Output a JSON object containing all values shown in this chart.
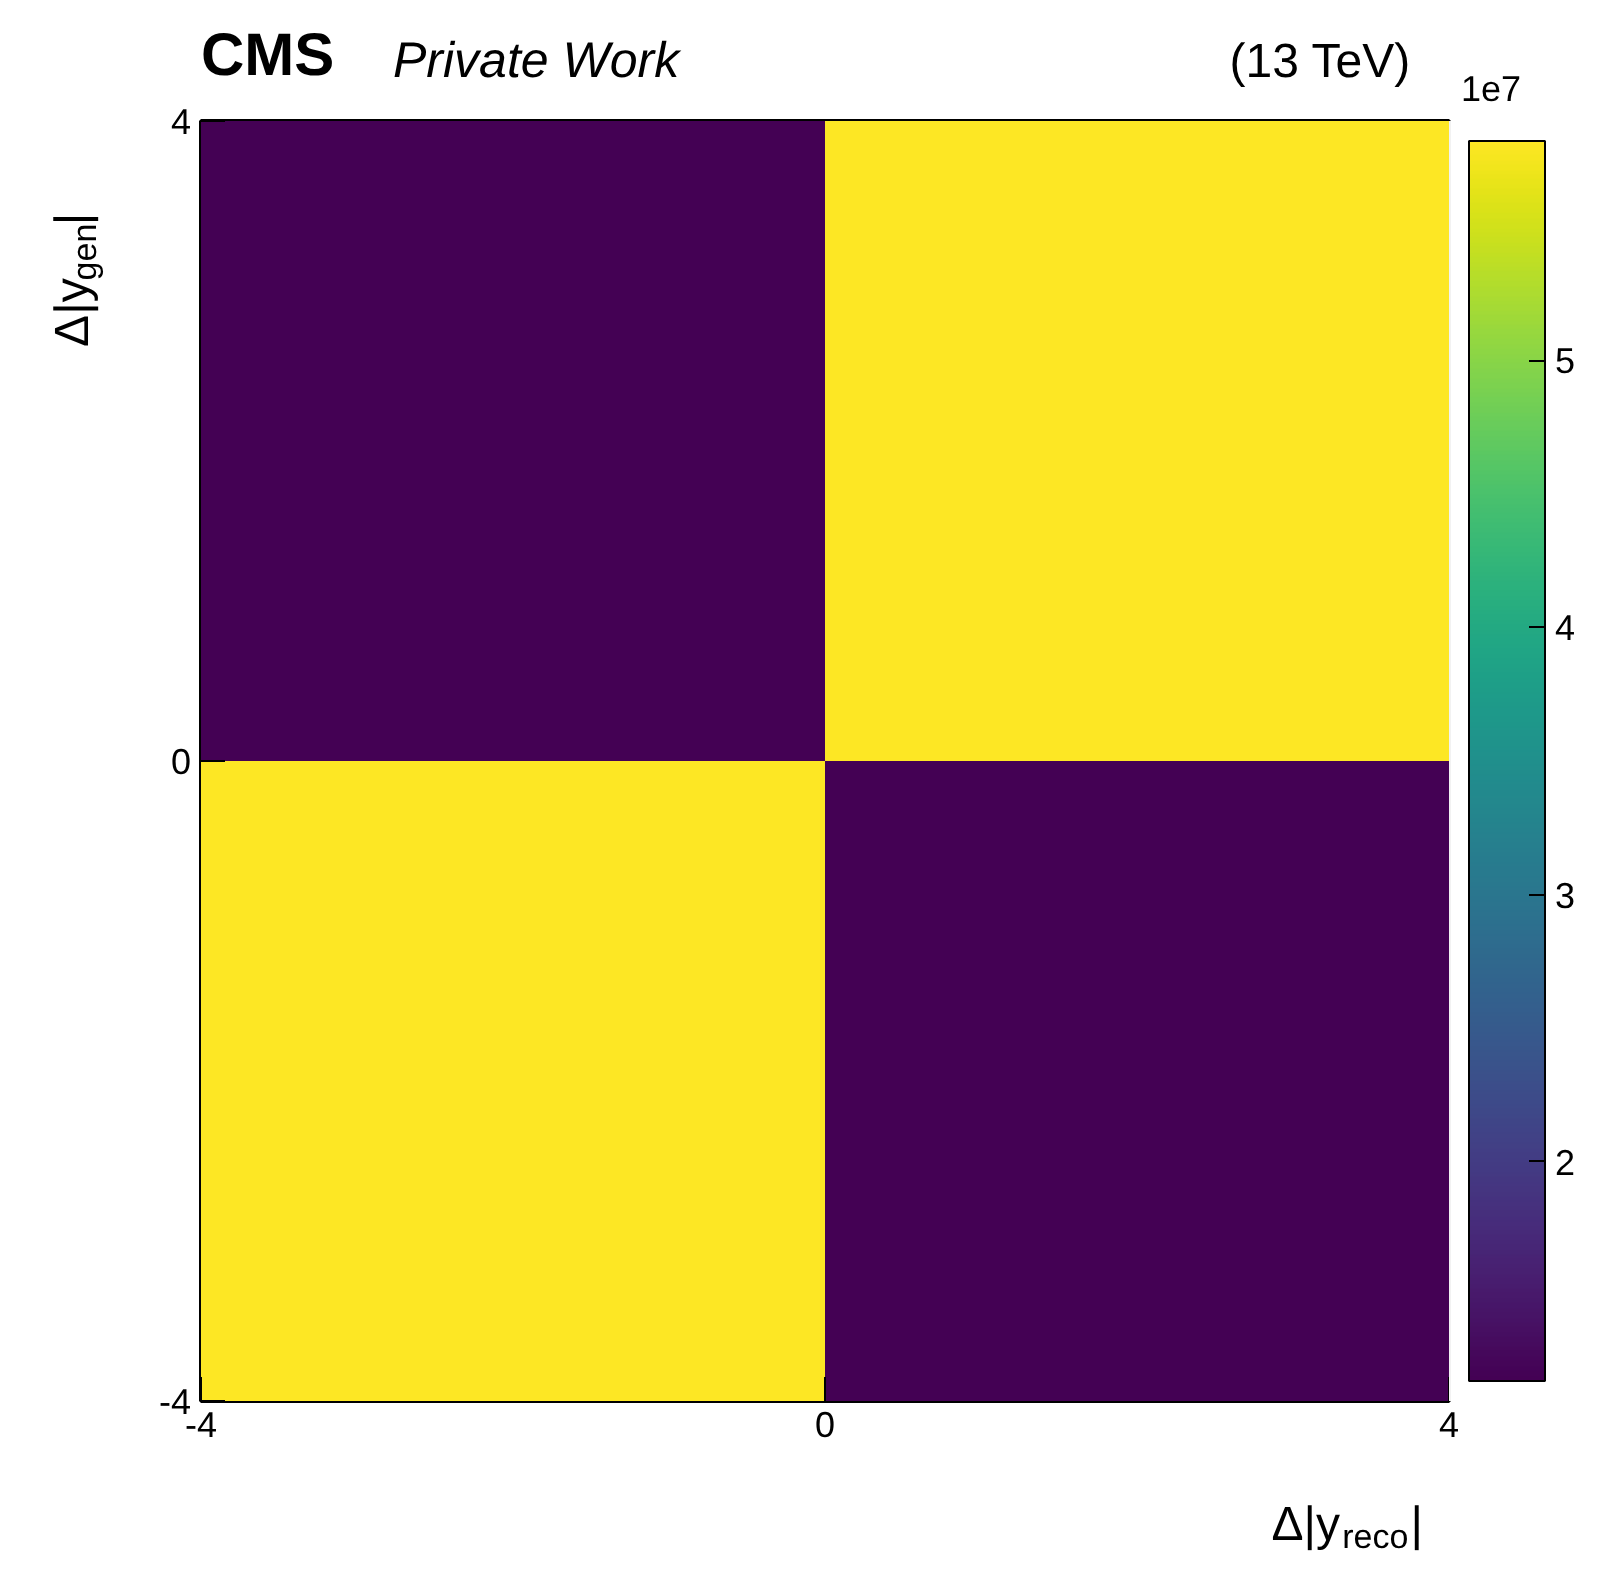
{
  "chart_data": {
    "type": "heatmap",
    "title": "CMS",
    "subtitle": "Private Work",
    "annotations": [
      "(13 TeV)"
    ],
    "xlabel": "Δ|y$_{reco}$|",
    "ylabel": "Δ|y$_{gen}$|",
    "x": [
      -2,
      2
    ],
    "y": [
      2,
      -2
    ],
    "cells": [
      [
        1.18,
        5.82
      ],
      [
        5.82,
        1.18
      ]
    ],
    "xlim": [
      -4,
      4
    ],
    "xticks": [
      -4,
      0,
      4
    ],
    "ylim": [
      -4,
      4
    ],
    "yticks": [
      -4,
      0,
      4
    ],
    "clim": [
      1.18,
      5.82
    ],
    "clabel": "1e7",
    "cticks": [
      2,
      3,
      4,
      5
    ]
  }
}
